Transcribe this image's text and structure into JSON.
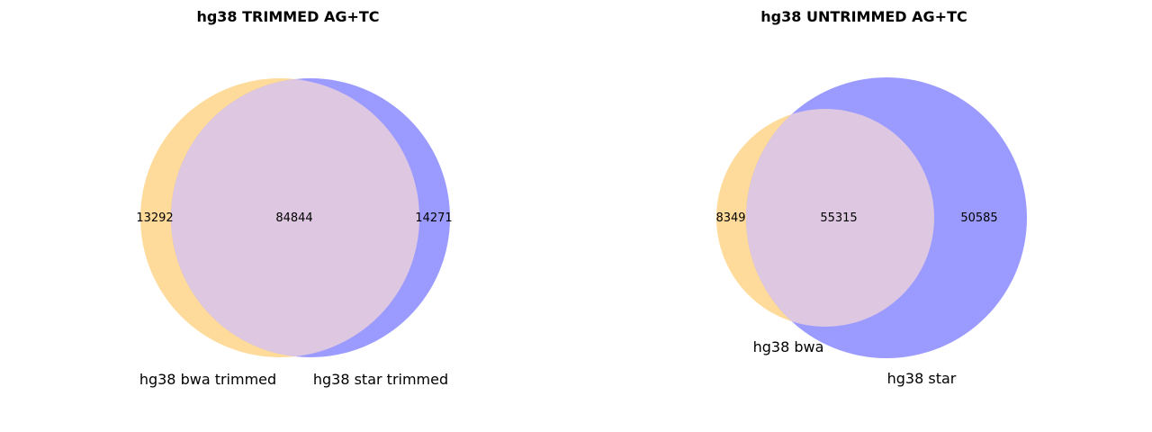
{
  "colors": {
    "set_a": "#fedb9b",
    "set_b": "#9b9bff",
    "overlap": "#dec7e0"
  },
  "diagrams": [
    {
      "title": "hg38 TRIMMED AG+TC",
      "set_a_label": "hg38 bwa trimmed",
      "set_b_label": "hg38 star trimmed",
      "only_a": "13292",
      "both": "84844",
      "only_b": "14271"
    },
    {
      "title": "hg38 UNTRIMMED AG+TC",
      "set_a_label": "hg38 bwa",
      "set_b_label": "hg38 star",
      "only_a": "8349",
      "both": "55315",
      "only_b": "50585"
    }
  ]
}
